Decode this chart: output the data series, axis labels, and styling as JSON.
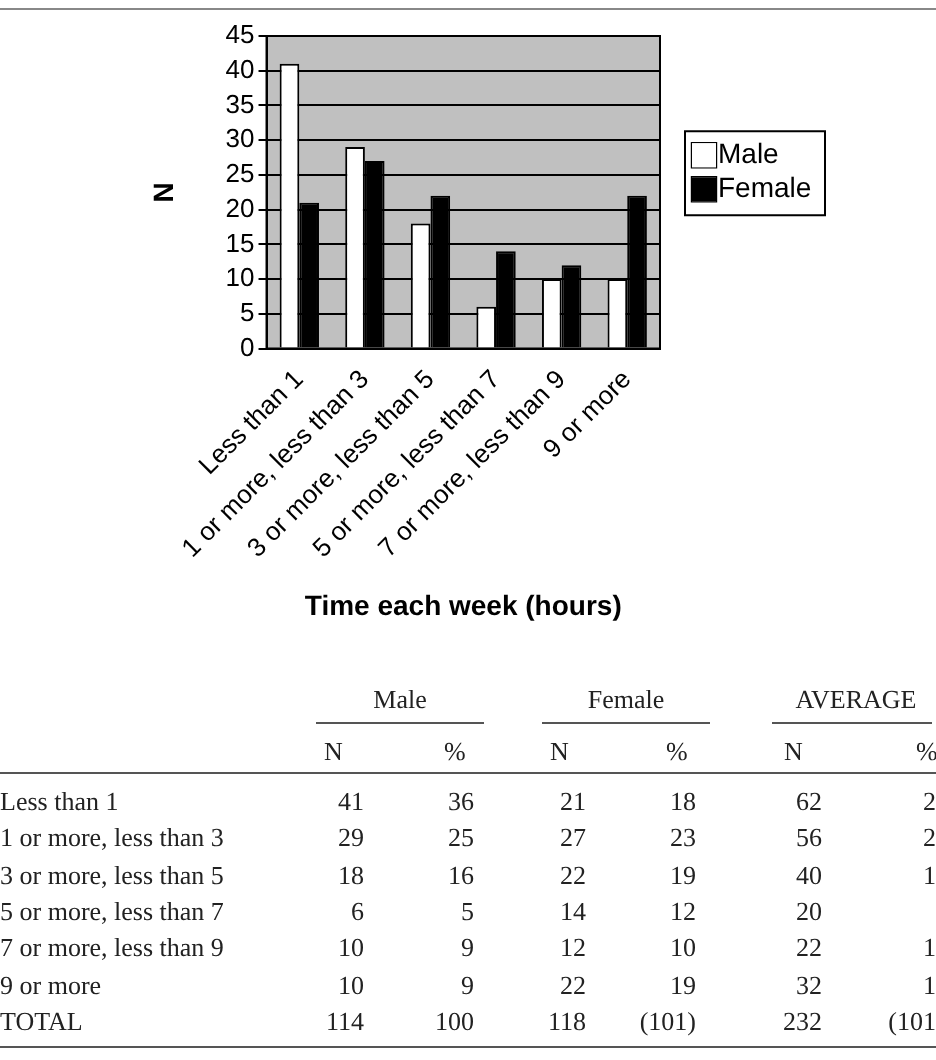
{
  "chart_data": {
    "type": "bar",
    "xlabel": "Time each week (hours)",
    "ylabel": "N",
    "categories": [
      "Less than 1",
      "1 or more, less than 3",
      "3 or more, less than 5",
      "5 or more, less than 7",
      "7 or more, less than 9",
      "9 or more"
    ],
    "series": [
      {
        "name": "Male",
        "color": "#ffffff",
        "values": [
          41,
          29,
          18,
          6,
          10,
          10
        ]
      },
      {
        "name": "Female",
        "color": "#000000",
        "values": [
          21,
          27,
          22,
          14,
          12,
          22
        ]
      }
    ],
    "ylim": [
      0,
      45
    ],
    "yticks": [
      0,
      5,
      10,
      15,
      20,
      25,
      30,
      35,
      40,
      45
    ],
    "grid": "y",
    "legend": "right",
    "annotations": [
      "Male",
      "Female",
      "AVERAGE",
      "N",
      "%",
      "N",
      "%",
      "N",
      "%",
      "TOTAL",
      "41",
      "36",
      "21",
      "18",
      "62",
      "2",
      "29",
      "25",
      "27",
      "23",
      "56",
      "2",
      "18",
      "16",
      "22",
      "19",
      "40",
      "1",
      "6",
      "5",
      "14",
      "12",
      "20",
      null,
      "10",
      "9",
      "12",
      "10",
      "22",
      "1",
      "10",
      "9",
      "22",
      "19",
      "32",
      "1",
      "114",
      "100",
      "118",
      "(101)",
      "232",
      "(101"
    ]
  }
}
